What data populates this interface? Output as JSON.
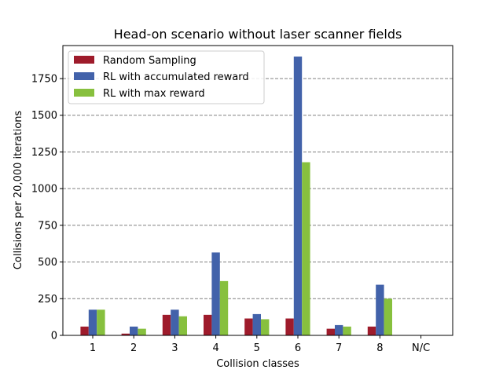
{
  "chart_data": {
    "type": "bar",
    "title": "Head-on scenario without laser scanner fields",
    "xlabel": "Collision classes",
    "ylabel": "Collisions per 20,000 iterations",
    "categories": [
      "1",
      "2",
      "3",
      "4",
      "5",
      "6",
      "7",
      "8",
      "N/C"
    ],
    "ylim": [
      0,
      1975
    ],
    "yticks": [
      0,
      250,
      500,
      750,
      1000,
      1250,
      1500,
      1750
    ],
    "grid": "horizontal dashed",
    "legend": "top-left",
    "series": [
      {
        "name": "Random Sampling",
        "color": "#9e1b2b",
        "values": [
          60,
          12,
          140,
          140,
          115,
          115,
          45,
          60,
          0
        ]
      },
      {
        "name": "RL with accumulated reward",
        "color": "#4262aa",
        "values": [
          175,
          60,
          175,
          565,
          145,
          1900,
          70,
          345,
          0
        ]
      },
      {
        "name": "RL with max reward",
        "color": "#87c03e",
        "values": [
          175,
          45,
          130,
          370,
          110,
          1180,
          60,
          250,
          0
        ]
      }
    ]
  }
}
